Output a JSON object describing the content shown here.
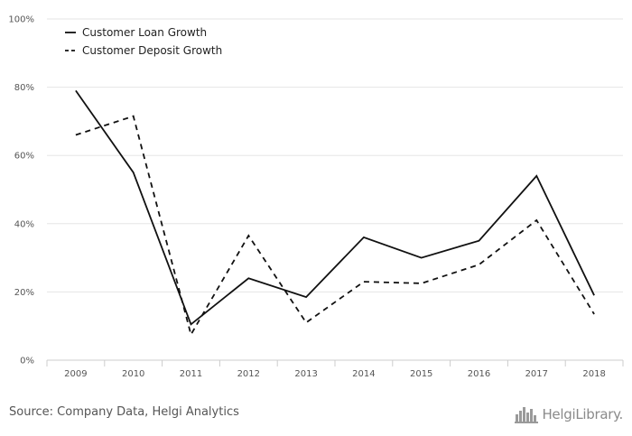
{
  "chart_data": {
    "type": "line",
    "categories": [
      "2009",
      "2010",
      "2011",
      "2012",
      "2013",
      "2014",
      "2015",
      "2016",
      "2017",
      "2018"
    ],
    "series": [
      {
        "name": "Customer Loan Growth",
        "style": "solid",
        "values": [
          79,
          55,
          10.5,
          24,
          18.5,
          36,
          30,
          35,
          54,
          19
        ]
      },
      {
        "name": "Customer Deposit Growth",
        "style": "dashed",
        "values": [
          66,
          71.5,
          7.5,
          36.5,
          11,
          23,
          22.5,
          28,
          41,
          13.5
        ]
      }
    ],
    "y_ticks": [
      "0%",
      "20%",
      "40%",
      "60%",
      "80%",
      "100%"
    ],
    "ylim": [
      0,
      100
    ],
    "grid": true,
    "legend_position": "top-left",
    "colors": {
      "line": "#111111",
      "grid": "#e6e6e6",
      "axis": "#cccccc"
    }
  },
  "footer": {
    "source": "Source: Company Data, Helgi Analytics",
    "logo_text": "HelgiLibrary."
  }
}
